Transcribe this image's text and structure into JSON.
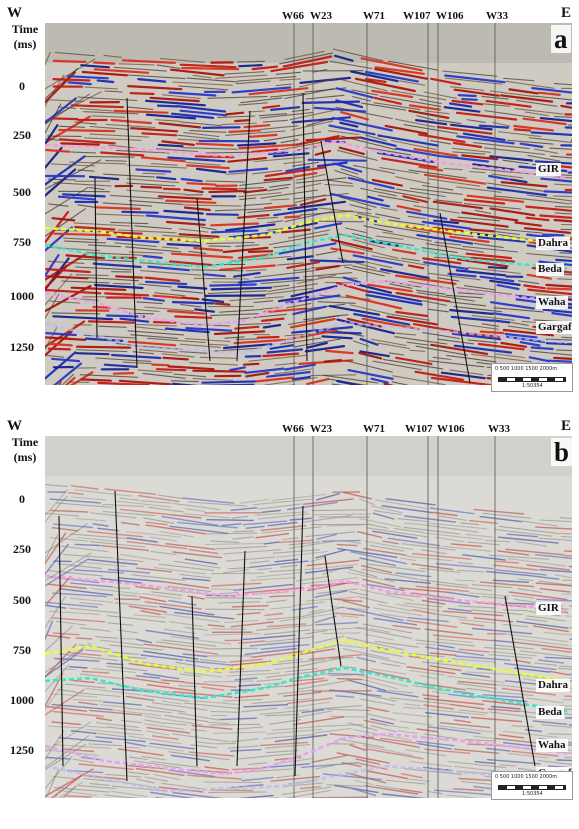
{
  "direction": {
    "west": "W",
    "east": "E"
  },
  "time_axis": {
    "title_line1": "Time",
    "title_line2": "(ms)",
    "ticks": [
      "0",
      "250",
      "500",
      "750",
      "1000",
      "1250"
    ]
  },
  "wells": [
    "W66",
    "W23",
    "W71",
    "W107",
    "W106",
    "W33"
  ],
  "horizons": [
    {
      "name": "GIR",
      "color": "#f29be0"
    },
    {
      "name": "Dahra",
      "color": "#e8ff2a"
    },
    {
      "name": "Beda",
      "color": "#33e8c8"
    },
    {
      "name": "Waha",
      "color": "#e79ff0"
    },
    {
      "name": "Gargaf",
      "color": "#b9b9f0"
    }
  ],
  "scale_bar": {
    "ticks": "0   500  1000  1500  2000m",
    "ratio": "1:50354"
  },
  "panels": [
    {
      "letter": "a",
      "style": "strong-amplitude"
    },
    {
      "letter": "b",
      "style": "weak-amplitude"
    }
  ]
}
